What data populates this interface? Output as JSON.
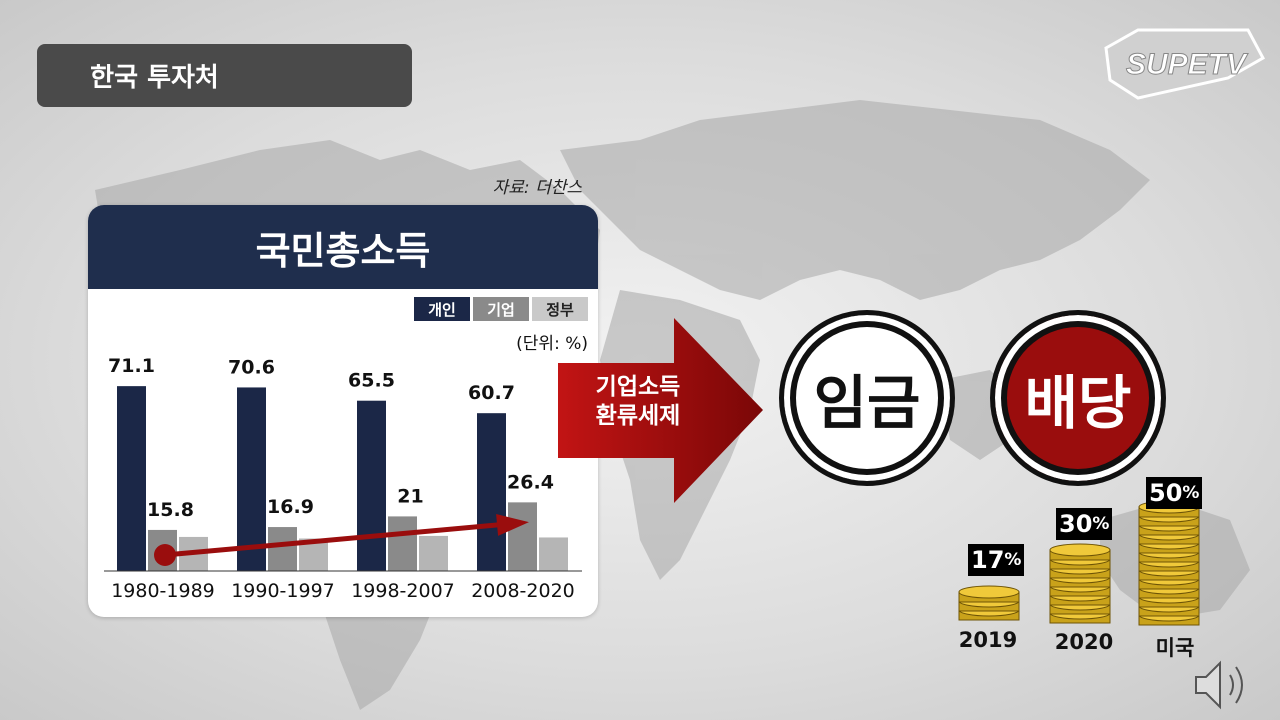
{
  "header": {
    "tag": "한국 투자처",
    "logo_text": "SUPETV",
    "source": "자료: 더찬스"
  },
  "panel": {
    "title": "국민총소득",
    "legend": [
      {
        "label": "개인",
        "color": "#1b2747"
      },
      {
        "label": "기업",
        "color": "#8a8a8a"
      },
      {
        "label": "정부",
        "color": "#b5b5b5"
      }
    ],
    "unit": "(단위: %)"
  },
  "chart_data": {
    "type": "bar",
    "title": "국민총소득",
    "categories": [
      "1980-1989",
      "1990-1997",
      "1998-2007",
      "2008-2020"
    ],
    "series": [
      {
        "name": "개인",
        "values": [
          71.1,
          70.6,
          65.5,
          60.7
        ],
        "labeled": true
      },
      {
        "name": "기업",
        "values": [
          15.8,
          16.9,
          21,
          26.4
        ],
        "labeled": true
      },
      {
        "name": "정부",
        "values": [
          13.1,
          12.5,
          13.5,
          12.9
        ],
        "labeled": false
      }
    ],
    "unit": "(단위: %)",
    "trend_arrow": {
      "series": "기업",
      "from": "1980-1989",
      "to": "2008-2020",
      "color": "#9a0d0d"
    }
  },
  "arrow": {
    "line1": "기업소득",
    "line2": "환류세제",
    "color": "#9a0d0d"
  },
  "circles": {
    "wage": "임금",
    "dividend": "배당"
  },
  "coins": [
    {
      "pct": "17",
      "year": "2019"
    },
    {
      "pct": "30",
      "year": "2020"
    },
    {
      "pct": "50",
      "year": "미국"
    }
  ],
  "pct_symbol": "%"
}
